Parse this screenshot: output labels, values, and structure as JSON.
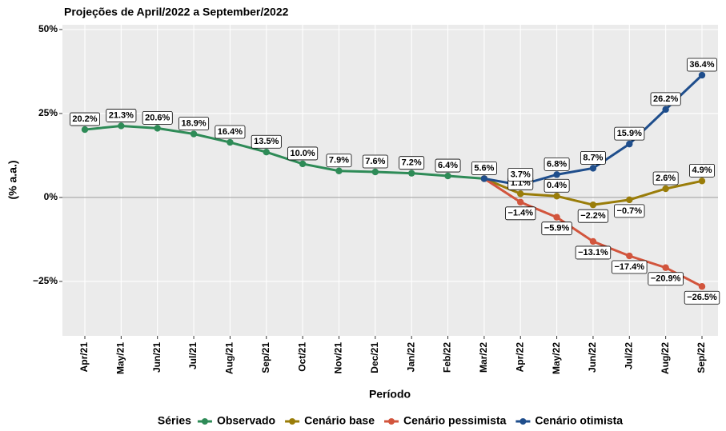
{
  "chart_data": {
    "type": "line",
    "title": "Projeções de April/2022 a September/2022",
    "x_label": "Período",
    "y_label": "(% a.a.)",
    "legend_title": "Séries",
    "legend_position": "bottom",
    "grid": true,
    "hline": 0,
    "categories": [
      "Apr/21",
      "May/21",
      "Jun/21",
      "Jul/21",
      "Aug/21",
      "Sep/21",
      "Oct/21",
      "Nov/21",
      "Dec/21",
      "Jan/22",
      "Feb/22",
      "Mar/22",
      "Apr/22",
      "May/22",
      "Jun/22",
      "Jul/22",
      "Aug/22",
      "Sep/22"
    ],
    "ylim": [
      -41.2,
      51.4
    ],
    "yticks": [
      {
        "value": -25,
        "label": "−25%"
      },
      {
        "value": 0,
        "label": "0%"
      },
      {
        "value": 25,
        "label": "25%"
      },
      {
        "value": 50,
        "label": "50%"
      }
    ],
    "series": [
      {
        "name": "Observado",
        "color": "#2e8b57",
        "values": [
          20.2,
          21.3,
          20.6,
          18.9,
          16.4,
          13.5,
          10.0,
          7.9,
          7.6,
          7.2,
          6.4,
          5.6,
          null,
          null,
          null,
          null,
          null,
          null
        ],
        "value_labels": [
          "20.2%",
          "21.3%",
          "20.6%",
          "18.9%",
          "16.4%",
          "13.5%",
          "10.0%",
          "7.9%",
          "7.6%",
          "7.2%",
          "6.4%",
          "5.6%",
          null,
          null,
          null,
          null,
          null,
          null
        ]
      },
      {
        "name": "Cenário base",
        "color": "#9a7d0a",
        "values": [
          null,
          null,
          null,
          null,
          null,
          null,
          null,
          null,
          null,
          null,
          null,
          5.6,
          1.1,
          0.4,
          -2.2,
          -0.7,
          2.6,
          4.9
        ],
        "value_labels": [
          null,
          null,
          null,
          null,
          null,
          null,
          null,
          null,
          null,
          null,
          null,
          null,
          "1.1%",
          "0.4%",
          "−2.2%",
          "−0.7%",
          "2.6%",
          "4.9%"
        ]
      },
      {
        "name": "Cenário pessimista",
        "color": "#d2553d",
        "values": [
          null,
          null,
          null,
          null,
          null,
          null,
          null,
          null,
          null,
          null,
          null,
          5.6,
          -1.4,
          -5.9,
          -13.1,
          -17.4,
          -20.9,
          -26.5
        ],
        "value_labels": [
          null,
          null,
          null,
          null,
          null,
          null,
          null,
          null,
          null,
          null,
          null,
          null,
          "−1.4%",
          "−5.9%",
          "−13.1%",
          "−17.4%",
          "−20.9%",
          "−26.5%"
        ]
      },
      {
        "name": "Cenário otimista",
        "color": "#1f4e8c",
        "values": [
          null,
          null,
          null,
          null,
          null,
          null,
          null,
          null,
          null,
          null,
          null,
          5.6,
          3.7,
          6.8,
          8.7,
          15.9,
          26.2,
          36.4
        ],
        "value_labels": [
          null,
          null,
          null,
          null,
          null,
          null,
          null,
          null,
          null,
          null,
          null,
          null,
          "3.7%",
          "6.8%",
          "8.7%",
          "15.9%",
          "26.2%",
          "36.4%"
        ]
      }
    ]
  }
}
